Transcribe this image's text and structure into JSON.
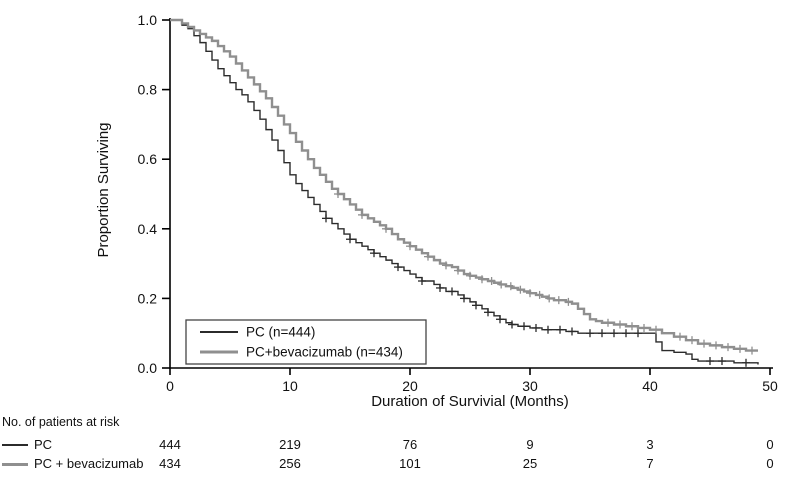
{
  "chart_data": {
    "type": "line",
    "subtype": "kaplan-meier-step",
    "title": "",
    "xlabel": "Duration of Survivial (Months)",
    "ylabel": "Proportion Surviving",
    "xlim": [
      0,
      50
    ],
    "ylim": [
      0.0,
      1.0
    ],
    "x_ticks": [
      0,
      10,
      20,
      30,
      40,
      50
    ],
    "y_ticks": [
      0.0,
      0.2,
      0.4,
      0.6,
      0.8,
      1.0
    ],
    "grid": false,
    "legend_position": "lower-left-inside",
    "series": [
      {
        "name": "PC (n=444)",
        "color": "#2b2b2b",
        "width": 1.4,
        "points": [
          [
            0,
            1.0
          ],
          [
            1,
            0.985
          ],
          [
            1.5,
            0.975
          ],
          [
            2,
            0.955
          ],
          [
            2.5,
            0.935
          ],
          [
            3,
            0.91
          ],
          [
            3.5,
            0.885
          ],
          [
            4,
            0.86
          ],
          [
            4.5,
            0.84
          ],
          [
            5,
            0.82
          ],
          [
            5.5,
            0.8
          ],
          [
            6,
            0.785
          ],
          [
            6.5,
            0.765
          ],
          [
            7,
            0.74
          ],
          [
            7.5,
            0.715
          ],
          [
            8,
            0.685
          ],
          [
            8.5,
            0.655
          ],
          [
            9,
            0.625
          ],
          [
            9.5,
            0.59
          ],
          [
            10,
            0.555
          ],
          [
            10.5,
            0.53
          ],
          [
            11,
            0.51
          ],
          [
            11.5,
            0.49
          ],
          [
            12,
            0.47
          ],
          [
            12.5,
            0.45
          ],
          [
            13,
            0.43
          ],
          [
            13.5,
            0.415
          ],
          [
            14,
            0.4
          ],
          [
            14.5,
            0.385
          ],
          [
            15,
            0.37
          ],
          [
            15.5,
            0.36
          ],
          [
            16,
            0.35
          ],
          [
            16.5,
            0.34
          ],
          [
            17,
            0.33
          ],
          [
            17.5,
            0.32
          ],
          [
            18,
            0.31
          ],
          [
            18.5,
            0.3
          ],
          [
            19,
            0.29
          ],
          [
            19.5,
            0.28
          ],
          [
            20,
            0.27
          ],
          [
            20.5,
            0.26
          ],
          [
            21,
            0.25
          ],
          [
            22,
            0.24
          ],
          [
            22.5,
            0.23
          ],
          [
            23,
            0.22
          ],
          [
            24,
            0.21
          ],
          [
            24.5,
            0.2
          ],
          [
            25,
            0.19
          ],
          [
            25.5,
            0.18
          ],
          [
            26,
            0.17
          ],
          [
            26.5,
            0.16
          ],
          [
            27,
            0.15
          ],
          [
            27.5,
            0.14
          ],
          [
            28,
            0.13
          ],
          [
            28.5,
            0.125
          ],
          [
            29,
            0.12
          ],
          [
            30,
            0.115
          ],
          [
            31,
            0.11
          ],
          [
            33,
            0.105
          ],
          [
            34,
            0.1
          ],
          [
            40,
            0.1
          ],
          [
            40.5,
            0.075
          ],
          [
            41,
            0.05
          ],
          [
            42,
            0.045
          ],
          [
            43,
            0.04
          ],
          [
            43.5,
            0.025
          ],
          [
            44,
            0.02
          ],
          [
            47,
            0.015
          ],
          [
            49,
            0.01
          ]
        ],
        "censor_x": [
          13,
          15,
          17,
          19,
          21,
          22.5,
          23.5,
          24.5,
          25.5,
          26.5,
          27.5,
          28.5,
          29.5,
          30.5,
          31.5,
          32.5,
          33.5,
          35,
          36,
          37,
          38,
          39,
          45,
          46,
          48
        ]
      },
      {
        "name": "PC+bevacizumab (n=434)",
        "color": "#8f8f8f",
        "width": 2.4,
        "points": [
          [
            0,
            1.0
          ],
          [
            1,
            0.99
          ],
          [
            1.5,
            0.98
          ],
          [
            2,
            0.97
          ],
          [
            2.5,
            0.96
          ],
          [
            3,
            0.95
          ],
          [
            3.5,
            0.94
          ],
          [
            4,
            0.925
          ],
          [
            4.5,
            0.91
          ],
          [
            5,
            0.895
          ],
          [
            5.5,
            0.875
          ],
          [
            6,
            0.855
          ],
          [
            6.5,
            0.835
          ],
          [
            7,
            0.815
          ],
          [
            7.5,
            0.795
          ],
          [
            8,
            0.775
          ],
          [
            8.5,
            0.75
          ],
          [
            9,
            0.725
          ],
          [
            9.5,
            0.7
          ],
          [
            10,
            0.675
          ],
          [
            10.5,
            0.65
          ],
          [
            11,
            0.625
          ],
          [
            11.5,
            0.6
          ],
          [
            12,
            0.575
          ],
          [
            12.5,
            0.555
          ],
          [
            13,
            0.535
          ],
          [
            13.5,
            0.515
          ],
          [
            14,
            0.5
          ],
          [
            14.5,
            0.485
          ],
          [
            15,
            0.47
          ],
          [
            15.5,
            0.455
          ],
          [
            16,
            0.44
          ],
          [
            16.5,
            0.43
          ],
          [
            17,
            0.42
          ],
          [
            17.5,
            0.41
          ],
          [
            18,
            0.4
          ],
          [
            18.5,
            0.385
          ],
          [
            19,
            0.37
          ],
          [
            19.5,
            0.36
          ],
          [
            20,
            0.35
          ],
          [
            20.5,
            0.34
          ],
          [
            21,
            0.33
          ],
          [
            21.5,
            0.32
          ],
          [
            22,
            0.31
          ],
          [
            22.5,
            0.3
          ],
          [
            23,
            0.295
          ],
          [
            23.5,
            0.29
          ],
          [
            24,
            0.28
          ],
          [
            24.5,
            0.27
          ],
          [
            25,
            0.265
          ],
          [
            25.5,
            0.26
          ],
          [
            26,
            0.255
          ],
          [
            26.5,
            0.25
          ],
          [
            27,
            0.245
          ],
          [
            27.5,
            0.24
          ],
          [
            28,
            0.235
          ],
          [
            28.5,
            0.23
          ],
          [
            29,
            0.225
          ],
          [
            29.5,
            0.22
          ],
          [
            30,
            0.215
          ],
          [
            30.5,
            0.21
          ],
          [
            31,
            0.205
          ],
          [
            31.5,
            0.2
          ],
          [
            32,
            0.195
          ],
          [
            33,
            0.19
          ],
          [
            33.5,
            0.185
          ],
          [
            34,
            0.17
          ],
          [
            34.5,
            0.155
          ],
          [
            35,
            0.14
          ],
          [
            35.5,
            0.135
          ],
          [
            36,
            0.13
          ],
          [
            37,
            0.125
          ],
          [
            38,
            0.12
          ],
          [
            39,
            0.115
          ],
          [
            40,
            0.11
          ],
          [
            41,
            0.1
          ],
          [
            42,
            0.09
          ],
          [
            43,
            0.08
          ],
          [
            44,
            0.07
          ],
          [
            45,
            0.065
          ],
          [
            46,
            0.06
          ],
          [
            47,
            0.055
          ],
          [
            48,
            0.05
          ],
          [
            49,
            0.05
          ]
        ],
        "censor_x": [
          14,
          16,
          18,
          20,
          21.5,
          23,
          24,
          25,
          26,
          26.8,
          27.6,
          28.4,
          29.2,
          30,
          30.8,
          31.6,
          32.4,
          33.2,
          36.5,
          37.5,
          38.5,
          39.5,
          40.5,
          42.5,
          43.5,
          44.5,
          45.5,
          46.5,
          47.5,
          48.5
        ]
      }
    ],
    "at_risk": {
      "header": "No. of patients at risk",
      "time_points": [
        0,
        10,
        20,
        30,
        40,
        50
      ],
      "rows": [
        {
          "label": "PC",
          "color": "#2b2b2b",
          "swatch_thickness": 2,
          "counts": [
            444,
            219,
            76,
            9,
            3,
            0
          ]
        },
        {
          "label": "PC + bevacizumab",
          "color": "#8f8f8f",
          "swatch_thickness": 3,
          "counts": [
            434,
            256,
            101,
            25,
            7,
            0
          ]
        }
      ]
    }
  }
}
